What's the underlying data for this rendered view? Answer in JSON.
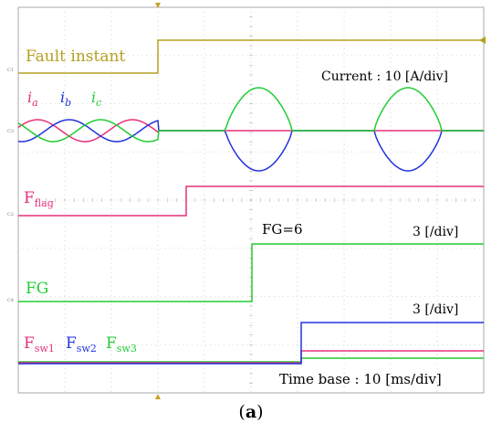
{
  "labels": {
    "fault_instant": "Fault instant",
    "current_scale": "Current : 10 [A/div]",
    "ia_main": "i",
    "ia_sub": "a",
    "ib_main": "i",
    "ib_sub": "b",
    "ic_main": "i",
    "ic_sub": "c",
    "fflag_main": "F",
    "fflag_sub": "flag",
    "fg_value": "FG=6",
    "fg_scale": "3 [/div]",
    "fg": "FG",
    "fsw_scale": "3 [/div]",
    "fsw1_main": "F",
    "fsw1_sub": "sw1",
    "fsw2_main": "F",
    "fsw2_sub": "sw2",
    "fsw3_main": "F",
    "fsw3_sub": "sw3",
    "time_base": "Time base : 10 [ms/div]",
    "ch1": "C1",
    "ch3": "C3",
    "ch2": "C2",
    "ch4": "C4"
  },
  "caption": {
    "open": "(",
    "letter": "a",
    "close": ")"
  },
  "colors": {
    "ch1": "#b5a020",
    "ia": "#e8307a",
    "ib": "#2233dd",
    "ic": "#22cc33",
    "grid": "#c8c8c8",
    "axis": "#808080",
    "marker": "#c8a020"
  }
}
